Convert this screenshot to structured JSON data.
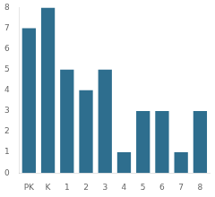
{
  "chart_data": {
    "type": "bar",
    "categories": [
      "PK",
      "K",
      "1",
      "2",
      "3",
      "4",
      "5",
      "6",
      "7",
      "8"
    ],
    "values": [
      7,
      8,
      5,
      4,
      5,
      1,
      3,
      3,
      1,
      3
    ],
    "color": "#2e6e8e",
    "ylim": [
      0,
      8
    ],
    "yticks": [
      0,
      1,
      2,
      3,
      4,
      5,
      6,
      7,
      8
    ],
    "grid": false
  }
}
